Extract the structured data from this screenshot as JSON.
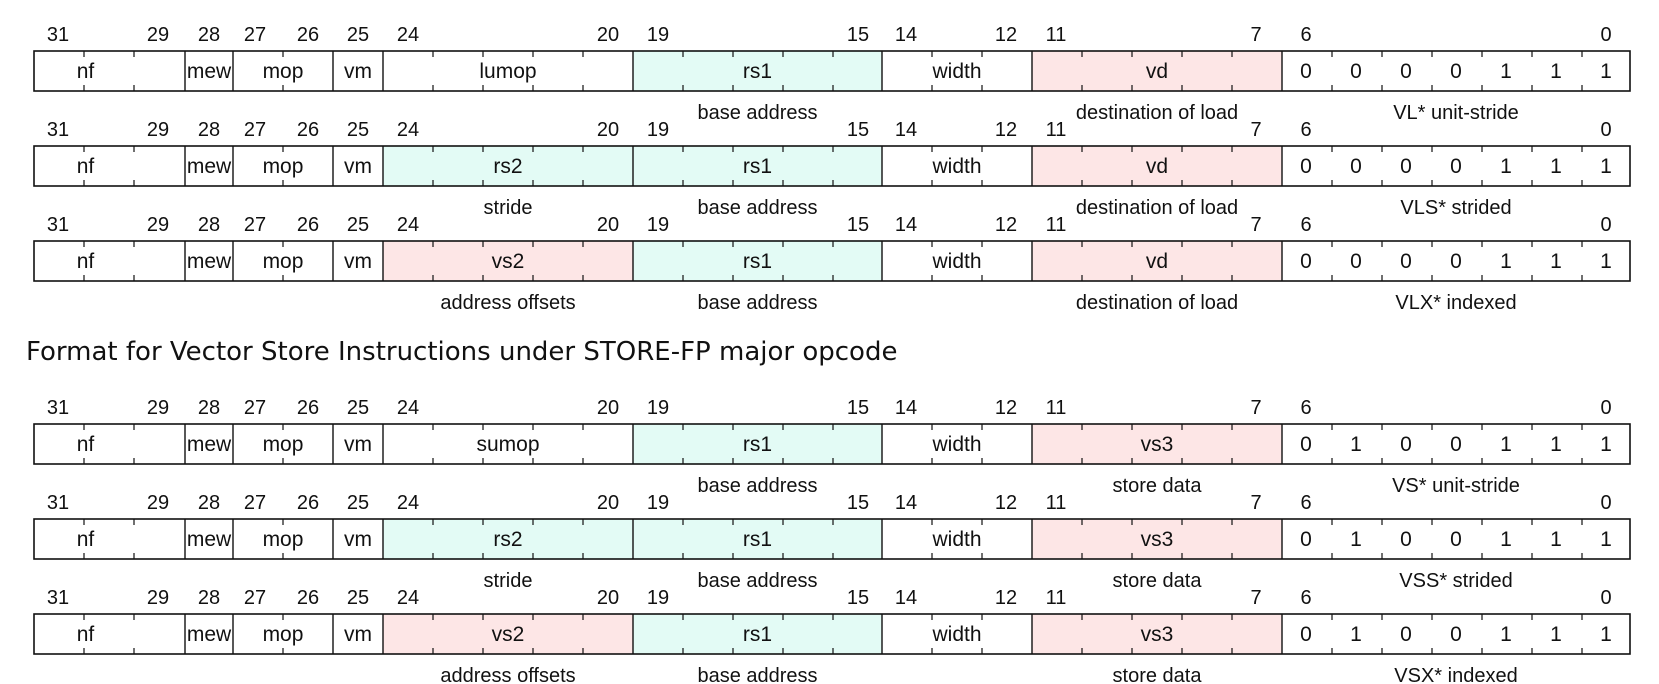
{
  "bit_numbers": [
    "31",
    "29",
    "28",
    "27",
    "26",
    "25",
    "24",
    "20",
    "19",
    "15",
    "14",
    "12",
    "11",
    "7",
    "6",
    "0"
  ],
  "store_heading": "Format for Vector Store Instructions under STORE-FP major opcode",
  "colors": {
    "register_source": "#e3fbf5",
    "register_vector": "#fde6e6",
    "plain": "#ffffff",
    "line": "#111111"
  },
  "rows": [
    {
      "fields": [
        "nf",
        "mew",
        "mop",
        "vm",
        "lumop",
        "rs1",
        "width",
        "vd"
      ],
      "fill": [
        "plain",
        "plain",
        "plain",
        "plain",
        "plain",
        "register_source",
        "plain",
        "register_vector"
      ],
      "opcode": [
        "0",
        "0",
        "0",
        "0",
        "1",
        "1",
        "1"
      ],
      "labels": [
        "",
        "base address",
        "destination of load",
        "VL* unit-stride"
      ]
    },
    {
      "fields": [
        "nf",
        "mew",
        "mop",
        "vm",
        "rs2",
        "rs1",
        "width",
        "vd"
      ],
      "fill": [
        "plain",
        "plain",
        "plain",
        "plain",
        "register_source",
        "register_source",
        "plain",
        "register_vector"
      ],
      "opcode": [
        "0",
        "0",
        "0",
        "0",
        "1",
        "1",
        "1"
      ],
      "labels": [
        "stride",
        "base address",
        "destination of load",
        "VLS* strided"
      ]
    },
    {
      "fields": [
        "nf",
        "mew",
        "mop",
        "vm",
        "vs2",
        "rs1",
        "width",
        "vd"
      ],
      "fill": [
        "plain",
        "plain",
        "plain",
        "plain",
        "register_vector",
        "register_source",
        "plain",
        "register_vector"
      ],
      "opcode": [
        "0",
        "0",
        "0",
        "0",
        "1",
        "1",
        "1"
      ],
      "labels": [
        "address offsets",
        "base address",
        "destination of load",
        "VLX* indexed"
      ]
    },
    {
      "fields": [
        "nf",
        "mew",
        "mop",
        "vm",
        "sumop",
        "rs1",
        "width",
        "vs3"
      ],
      "fill": [
        "plain",
        "plain",
        "plain",
        "plain",
        "plain",
        "register_source",
        "plain",
        "register_vector"
      ],
      "opcode": [
        "0",
        "1",
        "0",
        "0",
        "1",
        "1",
        "1"
      ],
      "labels": [
        "",
        "base address",
        "store data",
        "VS* unit-stride"
      ]
    },
    {
      "fields": [
        "nf",
        "mew",
        "mop",
        "vm",
        "rs2",
        "rs1",
        "width",
        "vs3"
      ],
      "fill": [
        "plain",
        "plain",
        "plain",
        "plain",
        "register_source",
        "register_source",
        "plain",
        "register_vector"
      ],
      "opcode": [
        "0",
        "1",
        "0",
        "0",
        "1",
        "1",
        "1"
      ],
      "labels": [
        "stride",
        "base address",
        "store data",
        "VSS* strided"
      ]
    },
    {
      "fields": [
        "nf",
        "mew",
        "mop",
        "vm",
        "vs2",
        "rs1",
        "width",
        "vs3"
      ],
      "fill": [
        "plain",
        "plain",
        "plain",
        "plain",
        "register_vector",
        "register_source",
        "plain",
        "register_vector"
      ],
      "opcode": [
        "0",
        "1",
        "0",
        "0",
        "1",
        "1",
        "1"
      ],
      "labels": [
        "address offsets",
        "base address",
        "store data",
        "VSX* indexed"
      ]
    }
  ]
}
